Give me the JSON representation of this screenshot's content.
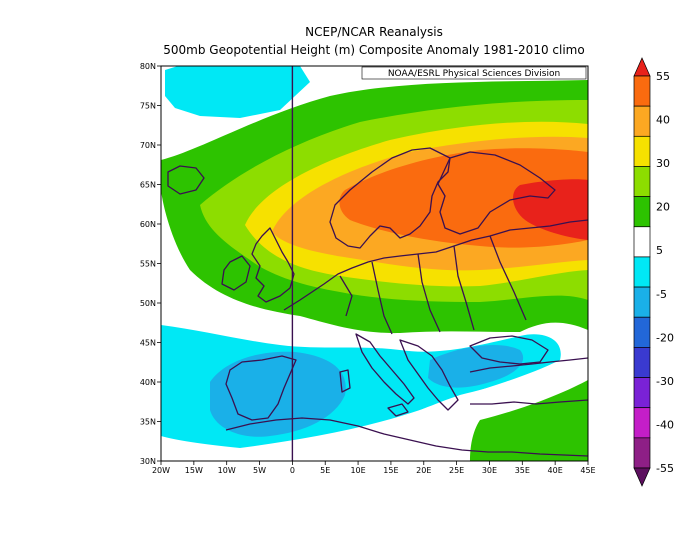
{
  "title_line1": "NCEP/NCAR Reanalysis",
  "title_line2": "500mb Geopotential Height (m) Composite Anomaly 1981-2010 climo",
  "credit": "NOAA/ESRL Physical Sciences Division",
  "map": {
    "lon_range": [
      -20,
      45
    ],
    "lat_range": [
      30,
      80
    ],
    "lon_ticks": [
      "20W",
      "15W",
      "10W",
      "5W",
      "0",
      "5E",
      "10E",
      "15E",
      "20E",
      "25E",
      "30E",
      "35E",
      "40E",
      "45E"
    ],
    "lat_ticks": [
      "80N",
      "75N",
      "70N",
      "65N",
      "60N",
      "55N",
      "50N",
      "45N",
      "40N",
      "35N",
      "30N"
    ],
    "meridian_line": "0"
  },
  "colorbar": {
    "labels": [
      "55",
      "40",
      "30",
      "20",
      "5",
      "-5",
      "-20",
      "-30",
      "-40",
      "-55"
    ],
    "colors": [
      "#e8221b",
      "#fa6b0f",
      "#fca822",
      "#f6e100",
      "#8ddd00",
      "#2dc300",
      "#ffffff",
      "#00e8f5",
      "#1ab0e8",
      "#2267d8",
      "#3a3ad0",
      "#7a22d6",
      "#c41ec8",
      "#8e1f86",
      "#5c0f5e"
    ]
  },
  "chart_data": {
    "type": "heatmap",
    "title": "500mb Geopotential Height (m) Composite Anomaly 1981-2010 climo",
    "subtitle": "NCEP/NCAR Reanalysis",
    "x_range": [
      -20,
      45
    ],
    "y_range": [
      30,
      80
    ],
    "levels": [
      -55,
      -40,
      -30,
      -20,
      -5,
      5,
      20,
      30,
      40,
      55
    ],
    "legend": "right"
  }
}
